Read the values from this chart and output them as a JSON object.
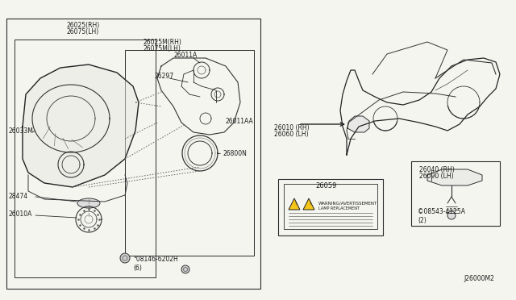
{
  "bg_color": "#f5f5f0",
  "line_color": "#2a2a2a",
  "text_color": "#1a1a1a",
  "fs": 5.5,
  "labels": {
    "26025_RH": "26025(RH)",
    "26075_LH": "26075(LH)",
    "26025M_RH": "26025M(RH)",
    "26075M_LH": "26075M(LH)",
    "26011A": "26011A",
    "26297": "26297",
    "26011AA": "26011AA",
    "26033M": "26033M",
    "28474": "28474",
    "26010A": "26010A",
    "26800N": "26800N",
    "bolt": "°08146-6202H\n(6)",
    "26010_RH": "26010 (RH)",
    "26060_LH": "26060 (LH)",
    "26040_RH": "26040 (RH)",
    "26090_LH": "26090 (LH)",
    "26059": "26059",
    "08543": "©08543-4125A\n(2)",
    "J26000M2": "J26000M2"
  }
}
